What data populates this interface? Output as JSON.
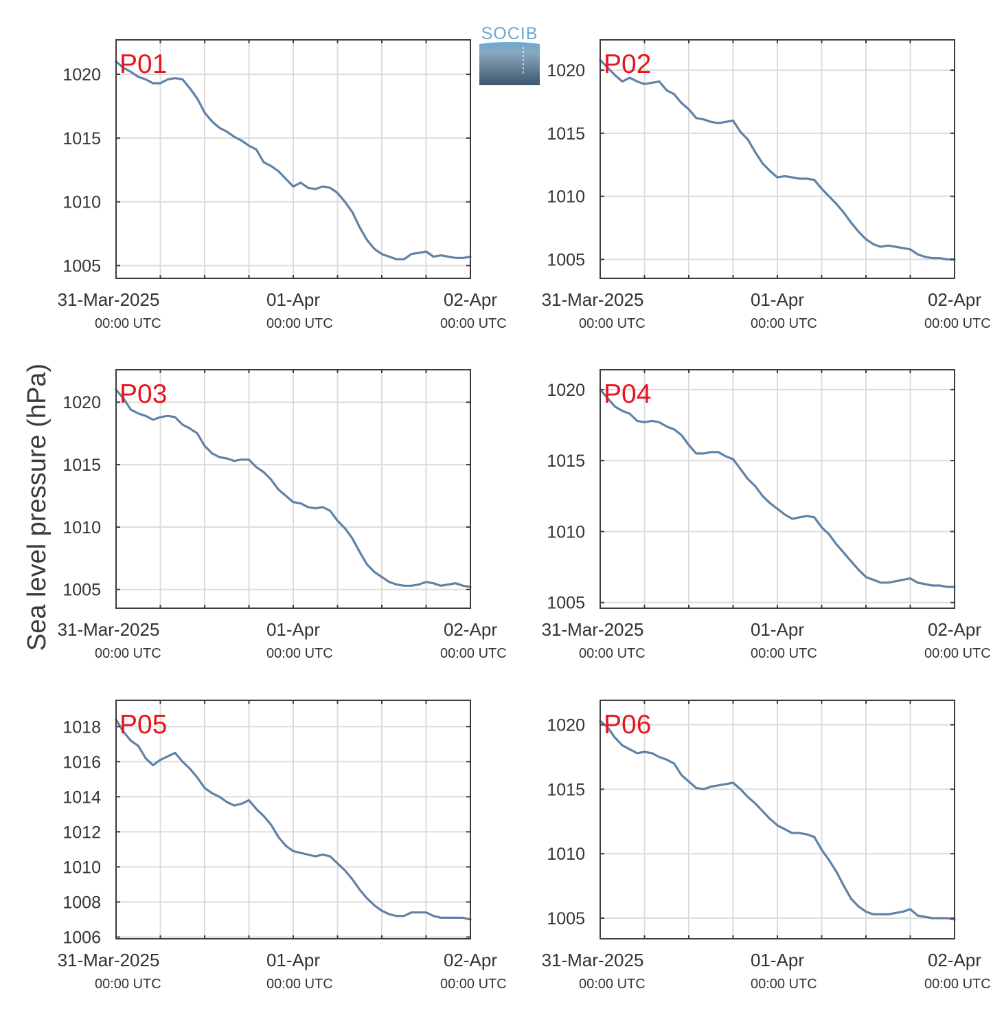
{
  "figure": {
    "ylabel": "Sea level pressure (hPa)",
    "logo_text": "SOCIB",
    "colors": {
      "line": "#5f82a6",
      "station_label": "#e8141e",
      "grid": "#dcdcdc",
      "axis": "#3c3c3c",
      "text": "#333333",
      "logo_top": "#6aa9cf",
      "logo_bottom": "#3d556c"
    }
  },
  "chart_data": [
    {
      "type": "line",
      "station": "P01",
      "xlim": [
        "31-Mar-2025 00:00",
        "02-Apr-2025 00:00"
      ],
      "x_major_ticks": [
        {
          "label": "31-Mar-2025",
          "sublabel": "00:00 UTC"
        },
        {
          "label": "01-Apr",
          "sublabel": "00:00 UTC"
        },
        {
          "label": "02-Apr",
          "sublabel": "00:00 UTC"
        }
      ],
      "ylim": [
        1004,
        1022.7
      ],
      "yticks": [
        1005,
        1010,
        1015,
        1020
      ],
      "grid": true,
      "series": [
        {
          "x_hours": [
            0,
            1,
            2,
            3,
            4,
            5,
            6,
            7,
            8,
            9,
            10,
            11,
            12,
            13,
            14,
            15,
            16,
            17,
            18,
            19,
            20,
            21,
            22,
            23,
            24,
            25,
            26,
            27,
            28,
            29,
            30,
            31,
            32,
            33,
            34,
            35,
            36,
            37,
            38,
            39,
            40,
            41,
            42,
            43,
            44,
            45,
            46,
            47,
            48
          ],
          "values": [
            1021.0,
            1020.5,
            1020.2,
            1019.8,
            1019.6,
            1019.3,
            1019.3,
            1019.6,
            1019.7,
            1019.6,
            1018.9,
            1018.1,
            1017.0,
            1016.3,
            1015.8,
            1015.5,
            1015.1,
            1014.8,
            1014.4,
            1014.1,
            1013.1,
            1012.8,
            1012.4,
            1011.8,
            1011.2,
            1011.5,
            1011.1,
            1011.0,
            1011.2,
            1011.1,
            1010.7,
            1010.0,
            1009.2,
            1008.0,
            1007.0,
            1006.3,
            1005.9,
            1005.7,
            1005.5,
            1005.5,
            1005.9,
            1006.0,
            1006.1,
            1005.7,
            1005.8,
            1005.7,
            1005.6,
            1005.6,
            1005.7
          ]
        }
      ]
    },
    {
      "type": "line",
      "station": "P02",
      "xlim": [
        "31-Mar-2025 00:00",
        "02-Apr-2025 00:00"
      ],
      "x_major_ticks": [
        {
          "label": "31-Mar-2025",
          "sublabel": "00:00 UTC"
        },
        {
          "label": "01-Apr",
          "sublabel": "00:00 UTC"
        },
        {
          "label": "02-Apr",
          "sublabel": "00:00 UTC"
        }
      ],
      "ylim": [
        1003.5,
        1022.4
      ],
      "yticks": [
        1005,
        1010,
        1015,
        1020
      ],
      "grid": true,
      "series": [
        {
          "x_hours": [
            0,
            1,
            2,
            3,
            4,
            5,
            6,
            7,
            8,
            9,
            10,
            11,
            12,
            13,
            14,
            15,
            16,
            17,
            18,
            19,
            20,
            21,
            22,
            23,
            24,
            25,
            26,
            27,
            28,
            29,
            30,
            31,
            32,
            33,
            34,
            35,
            36,
            37,
            38,
            39,
            40,
            41,
            42,
            43,
            44,
            45,
            46,
            47,
            48
          ],
          "values": [
            1020.8,
            1020.2,
            1019.6,
            1019.1,
            1019.4,
            1019.1,
            1018.9,
            1019.0,
            1019.1,
            1018.4,
            1018.1,
            1017.4,
            1016.9,
            1016.2,
            1016.1,
            1015.9,
            1015.8,
            1015.9,
            1016.0,
            1015.1,
            1014.5,
            1013.5,
            1012.6,
            1012.0,
            1011.5,
            1011.6,
            1011.5,
            1011.4,
            1011.4,
            1011.3,
            1010.6,
            1010.0,
            1009.4,
            1008.7,
            1007.9,
            1007.2,
            1006.6,
            1006.2,
            1006.0,
            1006.1,
            1006.0,
            1005.9,
            1005.8,
            1005.4,
            1005.2,
            1005.1,
            1005.1,
            1005.0,
            1005.0
          ]
        }
      ]
    },
    {
      "type": "line",
      "station": "P03",
      "xlim": [
        "31-Mar-2025 00:00",
        "02-Apr-2025 00:00"
      ],
      "x_major_ticks": [
        {
          "label": "31-Mar-2025",
          "sublabel": "00:00 UTC"
        },
        {
          "label": "01-Apr",
          "sublabel": "00:00 UTC"
        },
        {
          "label": "02-Apr",
          "sublabel": "00:00 UTC"
        }
      ],
      "ylim": [
        1003.5,
        1022.6
      ],
      "yticks": [
        1005,
        1010,
        1015,
        1020
      ],
      "grid": true,
      "series": [
        {
          "x_hours": [
            0,
            1,
            2,
            3,
            4,
            5,
            6,
            7,
            8,
            9,
            10,
            11,
            12,
            13,
            14,
            15,
            16,
            17,
            18,
            19,
            20,
            21,
            22,
            23,
            24,
            25,
            26,
            27,
            28,
            29,
            30,
            31,
            32,
            33,
            34,
            35,
            36,
            37,
            38,
            39,
            40,
            41,
            42,
            43,
            44,
            45,
            46,
            47,
            48
          ],
          "values": [
            1021.0,
            1020.3,
            1019.4,
            1019.1,
            1018.9,
            1018.6,
            1018.8,
            1018.9,
            1018.8,
            1018.2,
            1017.9,
            1017.5,
            1016.5,
            1015.9,
            1015.6,
            1015.5,
            1015.3,
            1015.4,
            1015.4,
            1014.8,
            1014.4,
            1013.8,
            1013.0,
            1012.5,
            1012.0,
            1011.9,
            1011.6,
            1011.5,
            1011.6,
            1011.3,
            1010.5,
            1009.9,
            1009.1,
            1008.0,
            1007.0,
            1006.4,
            1006.0,
            1005.6,
            1005.4,
            1005.3,
            1005.3,
            1005.4,
            1005.6,
            1005.5,
            1005.3,
            1005.4,
            1005.5,
            1005.3,
            1005.2
          ]
        }
      ]
    },
    {
      "type": "line",
      "station": "P04",
      "xlim": [
        "31-Mar-2025 00:00",
        "02-Apr-2025 00:00"
      ],
      "x_major_ticks": [
        {
          "label": "31-Mar-2025",
          "sublabel": "00:00 UTC"
        },
        {
          "label": "01-Apr",
          "sublabel": "00:00 UTC"
        },
        {
          "label": "02-Apr",
          "sublabel": "00:00 UTC"
        }
      ],
      "ylim": [
        1004.6,
        1021.4
      ],
      "yticks": [
        1005,
        1010,
        1015,
        1020
      ],
      "grid": true,
      "series": [
        {
          "x_hours": [
            0,
            1,
            2,
            3,
            4,
            5,
            6,
            7,
            8,
            9,
            10,
            11,
            12,
            13,
            14,
            15,
            16,
            17,
            18,
            19,
            20,
            21,
            22,
            23,
            24,
            25,
            26,
            27,
            28,
            29,
            30,
            31,
            32,
            33,
            34,
            35,
            36,
            37,
            38,
            39,
            40,
            41,
            42,
            43,
            44,
            45,
            46,
            47,
            48
          ],
          "values": [
            1020.0,
            1019.4,
            1018.8,
            1018.5,
            1018.3,
            1017.8,
            1017.7,
            1017.8,
            1017.7,
            1017.4,
            1017.2,
            1016.8,
            1016.1,
            1015.5,
            1015.5,
            1015.6,
            1015.6,
            1015.3,
            1015.1,
            1014.4,
            1013.7,
            1013.2,
            1012.5,
            1012.0,
            1011.6,
            1011.2,
            1010.9,
            1011.0,
            1011.1,
            1011.0,
            1010.3,
            1009.8,
            1009.1,
            1008.5,
            1007.9,
            1007.3,
            1006.8,
            1006.6,
            1006.4,
            1006.4,
            1006.5,
            1006.6,
            1006.7,
            1006.4,
            1006.3,
            1006.2,
            1006.2,
            1006.1,
            1006.1
          ]
        }
      ]
    },
    {
      "type": "line",
      "station": "P05",
      "xlim": [
        "31-Mar-2025 00:00",
        "02-Apr-2025 00:00"
      ],
      "x_major_ticks": [
        {
          "label": "31-Mar-2025",
          "sublabel": "00:00 UTC"
        },
        {
          "label": "01-Apr",
          "sublabel": "00:00 UTC"
        },
        {
          "label": "02-Apr",
          "sublabel": "00:00 UTC"
        }
      ],
      "ylim": [
        1005.9,
        1019.5
      ],
      "yticks": [
        1006,
        1008,
        1010,
        1012,
        1014,
        1016,
        1018
      ],
      "grid": true,
      "series": [
        {
          "x_hours": [
            0,
            1,
            2,
            3,
            4,
            5,
            6,
            7,
            8,
            9,
            10,
            11,
            12,
            13,
            14,
            15,
            16,
            17,
            18,
            19,
            20,
            21,
            22,
            23,
            24,
            25,
            26,
            27,
            28,
            29,
            30,
            31,
            32,
            33,
            34,
            35,
            36,
            37,
            38,
            39,
            40,
            41,
            42,
            43,
            44,
            45,
            46,
            47,
            48
          ],
          "values": [
            1018.4,
            1017.7,
            1017.2,
            1016.9,
            1016.2,
            1015.8,
            1016.1,
            1016.3,
            1016.5,
            1016.0,
            1015.6,
            1015.1,
            1014.5,
            1014.2,
            1014.0,
            1013.7,
            1013.5,
            1013.6,
            1013.8,
            1013.3,
            1012.9,
            1012.4,
            1011.7,
            1011.2,
            1010.9,
            1010.8,
            1010.7,
            1010.6,
            1010.7,
            1010.6,
            1010.2,
            1009.8,
            1009.3,
            1008.7,
            1008.2,
            1007.8,
            1007.5,
            1007.3,
            1007.2,
            1007.2,
            1007.4,
            1007.4,
            1007.4,
            1007.2,
            1007.1,
            1007.1,
            1007.1,
            1007.1,
            1007.0
          ]
        }
      ]
    },
    {
      "type": "line",
      "station": "P06",
      "xlim": [
        "31-Mar-2025 00:00",
        "02-Apr-2025 00:00"
      ],
      "x_major_ticks": [
        {
          "label": "31-Mar-2025",
          "sublabel": "00:00 UTC"
        },
        {
          "label": "01-Apr",
          "sublabel": "00:00 UTC"
        },
        {
          "label": "02-Apr",
          "sublabel": "00:00 UTC"
        }
      ],
      "ylim": [
        1003.4,
        1021.9
      ],
      "yticks": [
        1005,
        1010,
        1015,
        1020
      ],
      "grid": true,
      "series": [
        {
          "x_hours": [
            0,
            1,
            2,
            3,
            4,
            5,
            6,
            7,
            8,
            9,
            10,
            11,
            12,
            13,
            14,
            15,
            16,
            17,
            18,
            19,
            20,
            21,
            22,
            23,
            24,
            25,
            26,
            27,
            28,
            29,
            30,
            31,
            32,
            33,
            34,
            35,
            36,
            37,
            38,
            39,
            40,
            41,
            42,
            43,
            44,
            45,
            46,
            47,
            48
          ],
          "values": [
            1020.3,
            1019.8,
            1019.0,
            1018.4,
            1018.1,
            1017.8,
            1017.9,
            1017.8,
            1017.5,
            1017.3,
            1017.0,
            1016.1,
            1015.6,
            1015.1,
            1015.0,
            1015.2,
            1015.3,
            1015.4,
            1015.5,
            1015.0,
            1014.4,
            1013.9,
            1013.3,
            1012.7,
            1012.2,
            1011.9,
            1011.6,
            1011.6,
            1011.5,
            1011.3,
            1010.3,
            1009.5,
            1008.6,
            1007.5,
            1006.5,
            1005.9,
            1005.5,
            1005.3,
            1005.3,
            1005.3,
            1005.4,
            1005.5,
            1005.7,
            1005.2,
            1005.1,
            1005.0,
            1005.0,
            1005.0,
            1004.9
          ]
        }
      ]
    }
  ]
}
